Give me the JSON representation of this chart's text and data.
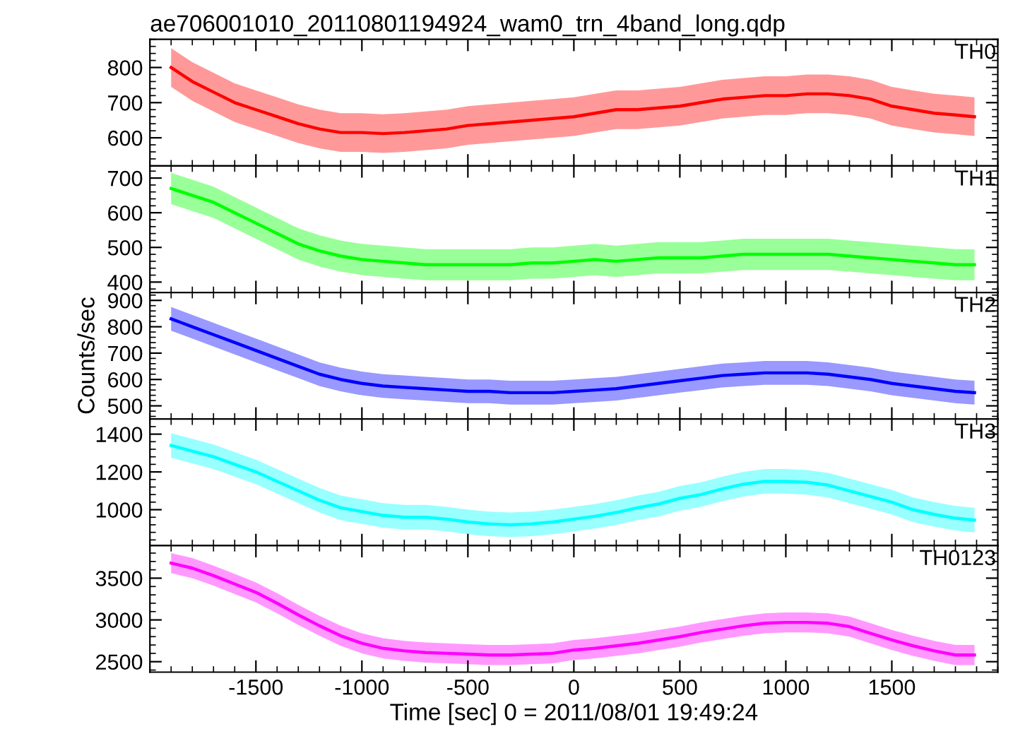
{
  "chart_data": [
    {
      "type": "line",
      "title": "ae706001010_20110801194924_wam0_trn_4band_long.qdp",
      "xlim": [
        -2000,
        2000
      ],
      "xticks": [
        -1500,
        -1000,
        -500,
        0,
        500,
        1000,
        1500
      ],
      "ylim": [
        520,
        880
      ],
      "yticks": [
        600,
        700,
        800
      ],
      "tick_labels": "y",
      "x": [
        -1900,
        -1800,
        -1700,
        -1600,
        -1500,
        -1400,
        -1300,
        -1200,
        -1100,
        -1000,
        -900,
        -800,
        -700,
        -600,
        -500,
        -400,
        -300,
        -200,
        -100,
        0,
        100,
        200,
        300,
        400,
        500,
        600,
        700,
        800,
        900,
        1000,
        1100,
        1200,
        1300,
        1400,
        1500,
        1600,
        1700,
        1800,
        1890
      ],
      "series": [
        {
          "name": "TH0",
          "color": "#ff0000",
          "values": [
            800,
            760,
            730,
            700,
            680,
            660,
            640,
            625,
            615,
            615,
            612,
            615,
            620,
            625,
            635,
            640,
            645,
            650,
            655,
            660,
            670,
            680,
            680,
            685,
            690,
            700,
            710,
            715,
            720,
            720,
            725,
            725,
            720,
            710,
            690,
            680,
            670,
            665,
            660
          ],
          "lower": [
            745,
            705,
            675,
            645,
            625,
            605,
            585,
            570,
            560,
            560,
            557,
            560,
            565,
            570,
            580,
            585,
            590,
            595,
            600,
            605,
            615,
            625,
            625,
            630,
            635,
            645,
            655,
            660,
            665,
            665,
            670,
            670,
            665,
            655,
            635,
            625,
            615,
            610,
            605
          ],
          "upper": [
            855,
            815,
            785,
            755,
            735,
            715,
            695,
            680,
            670,
            670,
            667,
            670,
            675,
            680,
            690,
            695,
            700,
            705,
            710,
            715,
            725,
            735,
            735,
            740,
            745,
            755,
            765,
            770,
            775,
            775,
            780,
            780,
            775,
            765,
            745,
            735,
            725,
            720,
            715
          ]
        }
      ]
    },
    {
      "type": "line",
      "xlim": [
        -2000,
        2000
      ],
      "xticks": [
        -1500,
        -1000,
        -500,
        0,
        500,
        1000,
        1500
      ],
      "ylim": [
        370,
        735
      ],
      "yticks": [
        400,
        500,
        600,
        700
      ],
      "tick_labels": "y",
      "x": [
        -1900,
        -1800,
        -1700,
        -1600,
        -1500,
        -1400,
        -1300,
        -1200,
        -1100,
        -1000,
        -900,
        -800,
        -700,
        -600,
        -500,
        -400,
        -300,
        -200,
        -100,
        0,
        100,
        200,
        300,
        400,
        500,
        600,
        700,
        800,
        900,
        1000,
        1100,
        1200,
        1300,
        1400,
        1500,
        1600,
        1700,
        1800,
        1890
      ],
      "series": [
        {
          "name": "TH1",
          "color": "#00ff00",
          "values": [
            670,
            650,
            630,
            600,
            570,
            540,
            510,
            490,
            475,
            465,
            460,
            455,
            450,
            450,
            450,
            450,
            450,
            455,
            455,
            460,
            465,
            460,
            465,
            470,
            470,
            470,
            475,
            480,
            480,
            480,
            480,
            480,
            475,
            470,
            465,
            460,
            455,
            450,
            450
          ],
          "lower": [
            625,
            605,
            585,
            555,
            525,
            495,
            465,
            445,
            430,
            420,
            415,
            410,
            405,
            405,
            405,
            405,
            405,
            410,
            410,
            415,
            420,
            415,
            420,
            425,
            425,
            425,
            430,
            435,
            435,
            435,
            435,
            435,
            430,
            425,
            420,
            415,
            410,
            405,
            405
          ],
          "upper": [
            715,
            695,
            675,
            645,
            615,
            585,
            555,
            535,
            520,
            510,
            505,
            500,
            495,
            495,
            495,
            495,
            495,
            500,
            500,
            505,
            510,
            505,
            510,
            515,
            515,
            515,
            520,
            525,
            525,
            525,
            525,
            525,
            520,
            515,
            510,
            505,
            500,
            495,
            495
          ]
        }
      ]
    },
    {
      "type": "line",
      "ylabel": "Counts/sec",
      "xlim": [
        -2000,
        2000
      ],
      "xticks": [
        -1500,
        -1000,
        -500,
        0,
        500,
        1000,
        1500
      ],
      "ylim": [
        450,
        930
      ],
      "yticks": [
        500,
        600,
        700,
        800,
        900
      ],
      "tick_labels": "y",
      "x": [
        -1900,
        -1800,
        -1700,
        -1600,
        -1500,
        -1400,
        -1300,
        -1200,
        -1100,
        -1000,
        -900,
        -800,
        -700,
        -600,
        -500,
        -400,
        -300,
        -200,
        -100,
        0,
        100,
        200,
        300,
        400,
        500,
        600,
        700,
        800,
        900,
        1000,
        1100,
        1200,
        1300,
        1400,
        1500,
        1600,
        1700,
        1800,
        1890
      ],
      "series": [
        {
          "name": "TH2",
          "color": "#0000ff",
          "values": [
            830,
            800,
            770,
            740,
            710,
            680,
            650,
            620,
            600,
            585,
            575,
            570,
            565,
            560,
            555,
            555,
            550,
            550,
            550,
            555,
            560,
            565,
            575,
            585,
            595,
            605,
            615,
            620,
            625,
            625,
            625,
            620,
            610,
            600,
            585,
            575,
            565,
            555,
            550
          ],
          "lower": [
            785,
            755,
            725,
            695,
            665,
            635,
            605,
            575,
            555,
            540,
            530,
            525,
            520,
            515,
            510,
            510,
            505,
            505,
            505,
            510,
            515,
            520,
            530,
            540,
            550,
            560,
            570,
            575,
            580,
            580,
            580,
            575,
            565,
            555,
            540,
            530,
            520,
            510,
            505
          ],
          "upper": [
            875,
            845,
            815,
            785,
            755,
            725,
            695,
            665,
            645,
            630,
            620,
            615,
            610,
            605,
            600,
            600,
            595,
            595,
            595,
            600,
            605,
            610,
            620,
            630,
            640,
            650,
            660,
            665,
            670,
            670,
            670,
            665,
            655,
            645,
            630,
            620,
            610,
            600,
            595
          ]
        }
      ]
    },
    {
      "type": "line",
      "xlim": [
        -2000,
        2000
      ],
      "xticks": [
        -1500,
        -1000,
        -500,
        0,
        500,
        1000,
        1500
      ],
      "ylim": [
        810,
        1480
      ],
      "yticks": [
        1000,
        1200,
        1400
      ],
      "tick_labels": "y",
      "x": [
        -1900,
        -1800,
        -1700,
        -1600,
        -1500,
        -1400,
        -1300,
        -1200,
        -1100,
        -1000,
        -900,
        -800,
        -700,
        -600,
        -500,
        -400,
        -300,
        -200,
        -100,
        0,
        100,
        200,
        300,
        400,
        500,
        600,
        700,
        800,
        900,
        1000,
        1100,
        1200,
        1300,
        1400,
        1500,
        1600,
        1700,
        1800,
        1890
      ],
      "series": [
        {
          "name": "TH3",
          "color": "#00ffff",
          "values": [
            1340,
            1310,
            1280,
            1240,
            1200,
            1150,
            1100,
            1050,
            1010,
            990,
            970,
            960,
            960,
            950,
            935,
            925,
            920,
            925,
            935,
            950,
            965,
            985,
            1010,
            1030,
            1060,
            1080,
            1110,
            1135,
            1150,
            1150,
            1145,
            1130,
            1100,
            1070,
            1040,
            1000,
            975,
            955,
            945
          ],
          "lower": [
            1275,
            1245,
            1215,
            1175,
            1135,
            1085,
            1035,
            985,
            945,
            925,
            905,
            895,
            895,
            885,
            870,
            860,
            855,
            860,
            870,
            885,
            900,
            920,
            945,
            965,
            995,
            1015,
            1045,
            1070,
            1085,
            1085,
            1080,
            1065,
            1035,
            1005,
            975,
            935,
            910,
            890,
            880
          ],
          "upper": [
            1405,
            1375,
            1345,
            1305,
            1265,
            1215,
            1165,
            1115,
            1075,
            1055,
            1035,
            1025,
            1025,
            1015,
            1000,
            990,
            985,
            990,
            1000,
            1015,
            1030,
            1050,
            1075,
            1095,
            1125,
            1145,
            1175,
            1200,
            1215,
            1215,
            1210,
            1195,
            1165,
            1135,
            1105,
            1065,
            1040,
            1020,
            1010
          ]
        }
      ]
    },
    {
      "type": "line",
      "xlabel": "Time [sec] 0 = 2011/08/01 19:49:24",
      "xlim": [
        -2000,
        2000
      ],
      "xticks": [
        -1500,
        -1000,
        -500,
        0,
        500,
        1000,
        1500
      ],
      "ylim": [
        2375,
        3890
      ],
      "yticks": [
        2500,
        3000,
        3500
      ],
      "x": [
        -1900,
        -1800,
        -1700,
        -1600,
        -1500,
        -1400,
        -1300,
        -1200,
        -1100,
        -1000,
        -900,
        -800,
        -700,
        -600,
        -500,
        -400,
        -300,
        -200,
        -100,
        0,
        100,
        200,
        300,
        400,
        500,
        600,
        700,
        800,
        900,
        1000,
        1100,
        1200,
        1300,
        1400,
        1500,
        1600,
        1700,
        1800,
        1890
      ],
      "series": [
        {
          "name": "TH0123",
          "color": "#ff00ff",
          "values": [
            3680,
            3620,
            3530,
            3430,
            3330,
            3200,
            3060,
            2930,
            2810,
            2720,
            2660,
            2630,
            2610,
            2600,
            2590,
            2580,
            2580,
            2590,
            2600,
            2640,
            2660,
            2690,
            2720,
            2760,
            2800,
            2850,
            2890,
            2930,
            2960,
            2970,
            2970,
            2960,
            2920,
            2840,
            2760,
            2690,
            2630,
            2580,
            2580
          ],
          "lower": [
            3560,
            3500,
            3410,
            3310,
            3210,
            3080,
            2940,
            2810,
            2690,
            2600,
            2540,
            2510,
            2490,
            2480,
            2470,
            2460,
            2460,
            2470,
            2480,
            2520,
            2540,
            2570,
            2600,
            2640,
            2680,
            2730,
            2770,
            2810,
            2840,
            2850,
            2850,
            2840,
            2800,
            2720,
            2640,
            2570,
            2510,
            2460,
            2460
          ],
          "upper": [
            3800,
            3740,
            3650,
            3550,
            3450,
            3320,
            3180,
            3050,
            2930,
            2840,
            2780,
            2750,
            2730,
            2720,
            2710,
            2700,
            2700,
            2710,
            2720,
            2760,
            2780,
            2810,
            2840,
            2880,
            2920,
            2970,
            3010,
            3050,
            3080,
            3090,
            3090,
            3080,
            3040,
            2960,
            2880,
            2810,
            2750,
            2700,
            2700
          ]
        }
      ]
    }
  ]
}
